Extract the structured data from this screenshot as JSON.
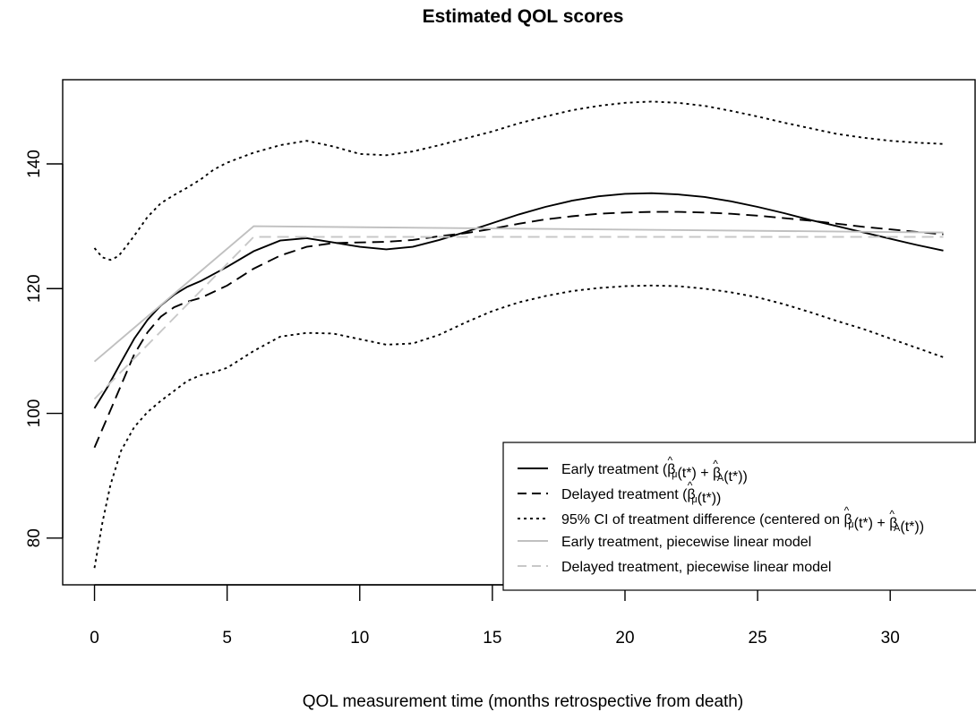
{
  "chart_data": {
    "type": "line",
    "title": "Estimated QOL scores",
    "xlabel": "QOL measurement time (months retrospective from death)",
    "ylabel": "",
    "xlim": [
      -1.2,
      33.2
    ],
    "ylim": [
      72.5,
      153.5
    ],
    "x_ticks": [
      0,
      5,
      10,
      15,
      20,
      25,
      30
    ],
    "y_ticks": [
      80,
      100,
      120,
      140
    ],
    "grid": false,
    "legend_position": "bottom-right",
    "series": [
      {
        "name": "Early treatment (β̂μ(t*) + β̂A(t*))",
        "legend_main": "Early treatment (",
        "legend_math": [
          {
            "t": "β",
            "hat": true,
            "sub": "μ"
          },
          {
            "t": "(t*) + "
          },
          {
            "t": "β",
            "hat": true,
            "sub": "A"
          },
          {
            "t": "(t*))"
          }
        ],
        "color": "#000000",
        "dash": "solid",
        "x": [
          0,
          0.5,
          1,
          1.5,
          2,
          2.5,
          3,
          3.5,
          4,
          5,
          6,
          7,
          8,
          9,
          10,
          11,
          12,
          13,
          14,
          15,
          16,
          17,
          18,
          19,
          20,
          21,
          22,
          23,
          24,
          25,
          26,
          27,
          28,
          29,
          30,
          31,
          32
        ],
        "y": [
          100.8,
          104.3,
          108.2,
          112.0,
          115.0,
          117.3,
          119.0,
          120.3,
          121.2,
          123.5,
          126.0,
          127.7,
          128.1,
          127.4,
          126.7,
          126.3,
          126.7,
          127.8,
          129.1,
          130.5,
          131.9,
          133.1,
          134.1,
          134.8,
          135.2,
          135.3,
          135.1,
          134.7,
          134.0,
          133.1,
          132.1,
          131.0,
          130.0,
          129.0,
          128.0,
          127.0,
          126.1
        ]
      },
      {
        "name": "Delayed treatment (β̂μ(t*))",
        "legend_main": "Delayed treatment (",
        "legend_math": [
          {
            "t": "β",
            "hat": true,
            "sub": "μ"
          },
          {
            "t": "(t*))"
          }
        ],
        "color": "#000000",
        "dash": "dashed",
        "x": [
          0,
          0.5,
          1,
          1.5,
          2,
          2.5,
          3,
          3.5,
          4,
          5,
          6,
          7,
          8,
          9,
          10,
          11,
          12,
          13,
          14,
          15,
          16,
          17,
          18,
          19,
          20,
          21,
          22,
          23,
          24,
          25,
          26,
          27,
          28,
          29,
          30,
          31,
          32
        ],
        "y": [
          94.5,
          99.5,
          104.5,
          109.5,
          113.0,
          115.5,
          117.0,
          117.9,
          118.5,
          120.5,
          123.2,
          125.3,
          126.7,
          127.3,
          127.4,
          127.5,
          127.8,
          128.4,
          128.9,
          129.6,
          130.4,
          131.1,
          131.6,
          132.0,
          132.2,
          132.3,
          132.3,
          132.2,
          132.0,
          131.7,
          131.3,
          130.9,
          130.4,
          129.9,
          129.5,
          129.1,
          128.7
        ]
      },
      {
        "name": "95% CI of treatment difference (centered on β̂μ(t*) + β̂A(t*))",
        "legend_main": "95% CI of treatment difference (centered on ",
        "legend_math": [
          {
            "t": "β",
            "hat": true,
            "sub": "μ"
          },
          {
            "t": "(t*) + "
          },
          {
            "t": "β",
            "hat": true,
            "sub": "A"
          },
          {
            "t": "(t*))"
          }
        ],
        "color": "#000000",
        "dash": "dotted",
        "segments": [
          {
            "x": [
              0,
              0.3,
              0.6,
              0.9,
              1.2,
              1.5,
              2,
              2.5,
              3,
              3.5,
              4,
              4.5,
              5,
              5.5,
              6,
              7,
              8,
              9,
              10,
              11,
              12,
              13,
              14,
              15,
              16,
              17,
              18,
              19,
              20,
              21,
              22,
              23,
              24,
              25,
              26,
              27,
              28,
              29,
              30,
              31,
              32
            ],
            "y": [
              126.5,
              125.0,
              124.6,
              125.2,
              126.8,
              128.5,
              131.5,
              133.7,
              135.0,
              136.2,
              137.5,
              139.1,
              140.2,
              141.0,
              141.8,
              143.0,
              143.7,
              142.8,
              141.6,
              141.4,
              142.0,
              143.0,
              144.1,
              145.2,
              146.5,
              147.6,
              148.6,
              149.3,
              149.8,
              150.0,
              149.8,
              149.3,
              148.5,
              147.6,
              146.6,
              145.7,
              144.8,
              144.2,
              143.7,
              143.4,
              143.2
            ]
          },
          {
            "x": [
              0,
              0.3,
              0.6,
              1,
              1.5,
              2,
              2.5,
              3,
              3.5,
              4,
              4.5,
              5,
              6,
              7,
              8,
              9,
              10,
              11,
              12,
              13,
              14,
              15,
              16,
              17,
              18,
              19,
              20,
              21,
              22,
              23,
              24,
              25,
              26,
              27,
              28,
              29,
              30,
              31,
              32
            ],
            "y": [
              75.2,
              82.5,
              88.5,
              94.0,
              97.8,
              100.2,
              102.0,
              103.6,
              105.2,
              106.1,
              106.6,
              107.3,
              110.0,
              112.3,
              112.9,
              112.8,
              111.9,
              111.0,
              111.2,
              112.6,
              114.6,
              116.4,
              117.8,
              118.8,
              119.6,
              120.1,
              120.4,
              120.5,
              120.4,
              120.0,
              119.4,
              118.6,
              117.5,
              116.2,
              114.8,
              113.5,
              112.0,
              110.5,
              109.0
            ]
          }
        ]
      },
      {
        "name": "Early treatment, piecewise linear model",
        "legend_main": "Early treatment, piecewise linear model",
        "legend_math": [],
        "color": "#c0c0c0",
        "dash": "solid",
        "x": [
          0,
          6,
          32
        ],
        "y": [
          108.3,
          130.0,
          129.0
        ]
      },
      {
        "name": "Delayed treatment, piecewise linear model",
        "legend_main": "Delayed treatment, piecewise linear model",
        "legend_math": [],
        "color": "#c8c8c8",
        "dash": "dashed",
        "x": [
          0,
          6,
          32
        ],
        "y": [
          102.3,
          128.3,
          128.3
        ]
      }
    ]
  }
}
